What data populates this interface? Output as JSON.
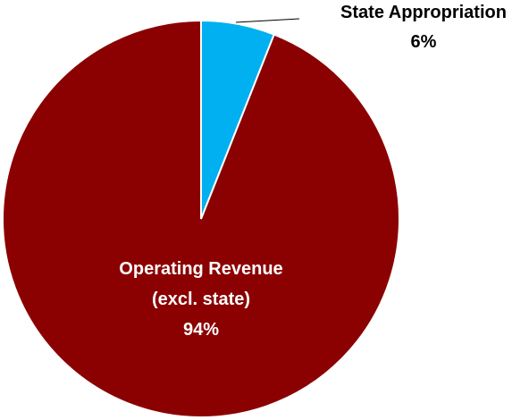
{
  "chart_data": {
    "type": "pie",
    "start": "12 o'clock",
    "direction": "clockwise",
    "slices": [
      {
        "label_lines": [
          "State Appropriation"
        ],
        "value": 6,
        "value_label": "6%",
        "color": "#00B0F0",
        "label_color": "#000000",
        "label_placement": "outside, top-right, with leader line"
      },
      {
        "label_lines": [
          "Operating Revenue",
          "(excl. state)"
        ],
        "value": 94,
        "value_label": "94%",
        "color": "#8B0000",
        "label_color": "#ffffff",
        "label_placement": "inside, lower-center"
      }
    ]
  }
}
